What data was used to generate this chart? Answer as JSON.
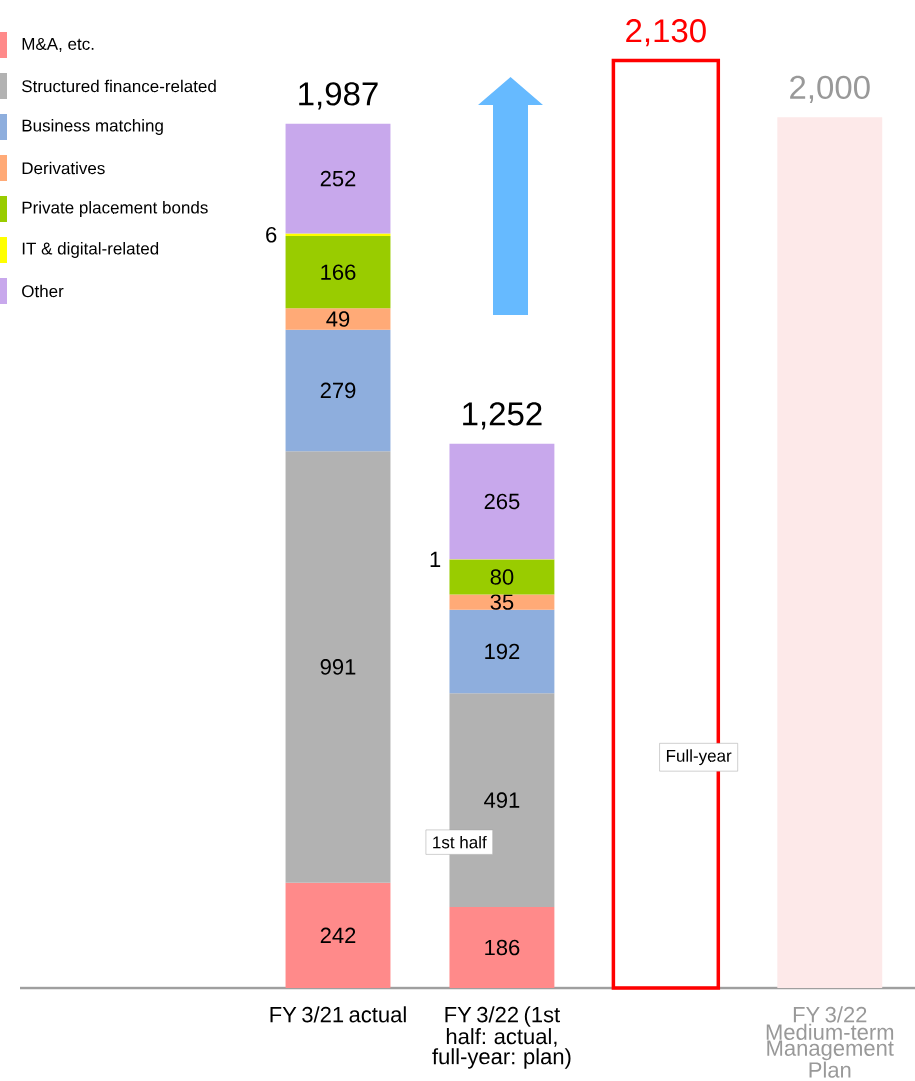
{
  "chart_data": {
    "type": "bar",
    "stacked": true,
    "categories": [
      "FY 3/21 actual",
      "FY 3/22 (1st half: actual, full-year: plan)",
      null,
      "FY 3/22 Medium-term Management Plan"
    ],
    "series": [
      {
        "name": "M&A, etc.",
        "color": "#ff8a8a",
        "values": [
          242,
          186,
          null,
          null
        ],
        "value_labels": [
          "242",
          "186",
          null,
          null
        ]
      },
      {
        "name": "Structured finance-related",
        "color": "#b2b2b2",
        "values": [
          991,
          491,
          null,
          null
        ],
        "value_labels": [
          "991",
          "491",
          null,
          null
        ]
      },
      {
        "name": "Business matching",
        "color": "#8eaedd",
        "values": [
          279,
          192,
          null,
          null
        ],
        "value_labels": [
          "279",
          "192",
          null,
          null
        ]
      },
      {
        "name": "Derivatives",
        "color": "#ffaa77",
        "values": [
          49,
          35,
          null,
          null
        ],
        "value_labels": [
          "49",
          "35",
          null,
          null
        ]
      },
      {
        "name": "Private placement bonds",
        "color": "#99cc00",
        "values": [
          166,
          80,
          null,
          null
        ],
        "value_labels": [
          "166",
          "80",
          null,
          null
        ]
      },
      {
        "name": "IT & digital-related",
        "color": "#ffff00",
        "values": [
          6,
          1,
          null,
          null
        ],
        "value_labels": [
          "6",
          "1",
          null,
          null
        ]
      },
      {
        "name": "Other",
        "color": "#c8a8ec",
        "values": [
          252,
          265,
          null,
          null
        ],
        "value_labels": [
          "252",
          "265",
          null,
          null
        ]
      },
      {
        "color": "#ff0000",
        "line_style": "solid",
        "values": [
          null,
          null,
          2130,
          null
        ]
      },
      {
        "color": "#fde9e9",
        "values": [
          null,
          null,
          null,
          2000
        ]
      }
    ],
    "totals": [
      "1,987",
      "1,252",
      "2,130",
      "2,000"
    ],
    "annotations": [
      "1st half",
      "Full-year"
    ],
    "legend": "top left"
  }
}
